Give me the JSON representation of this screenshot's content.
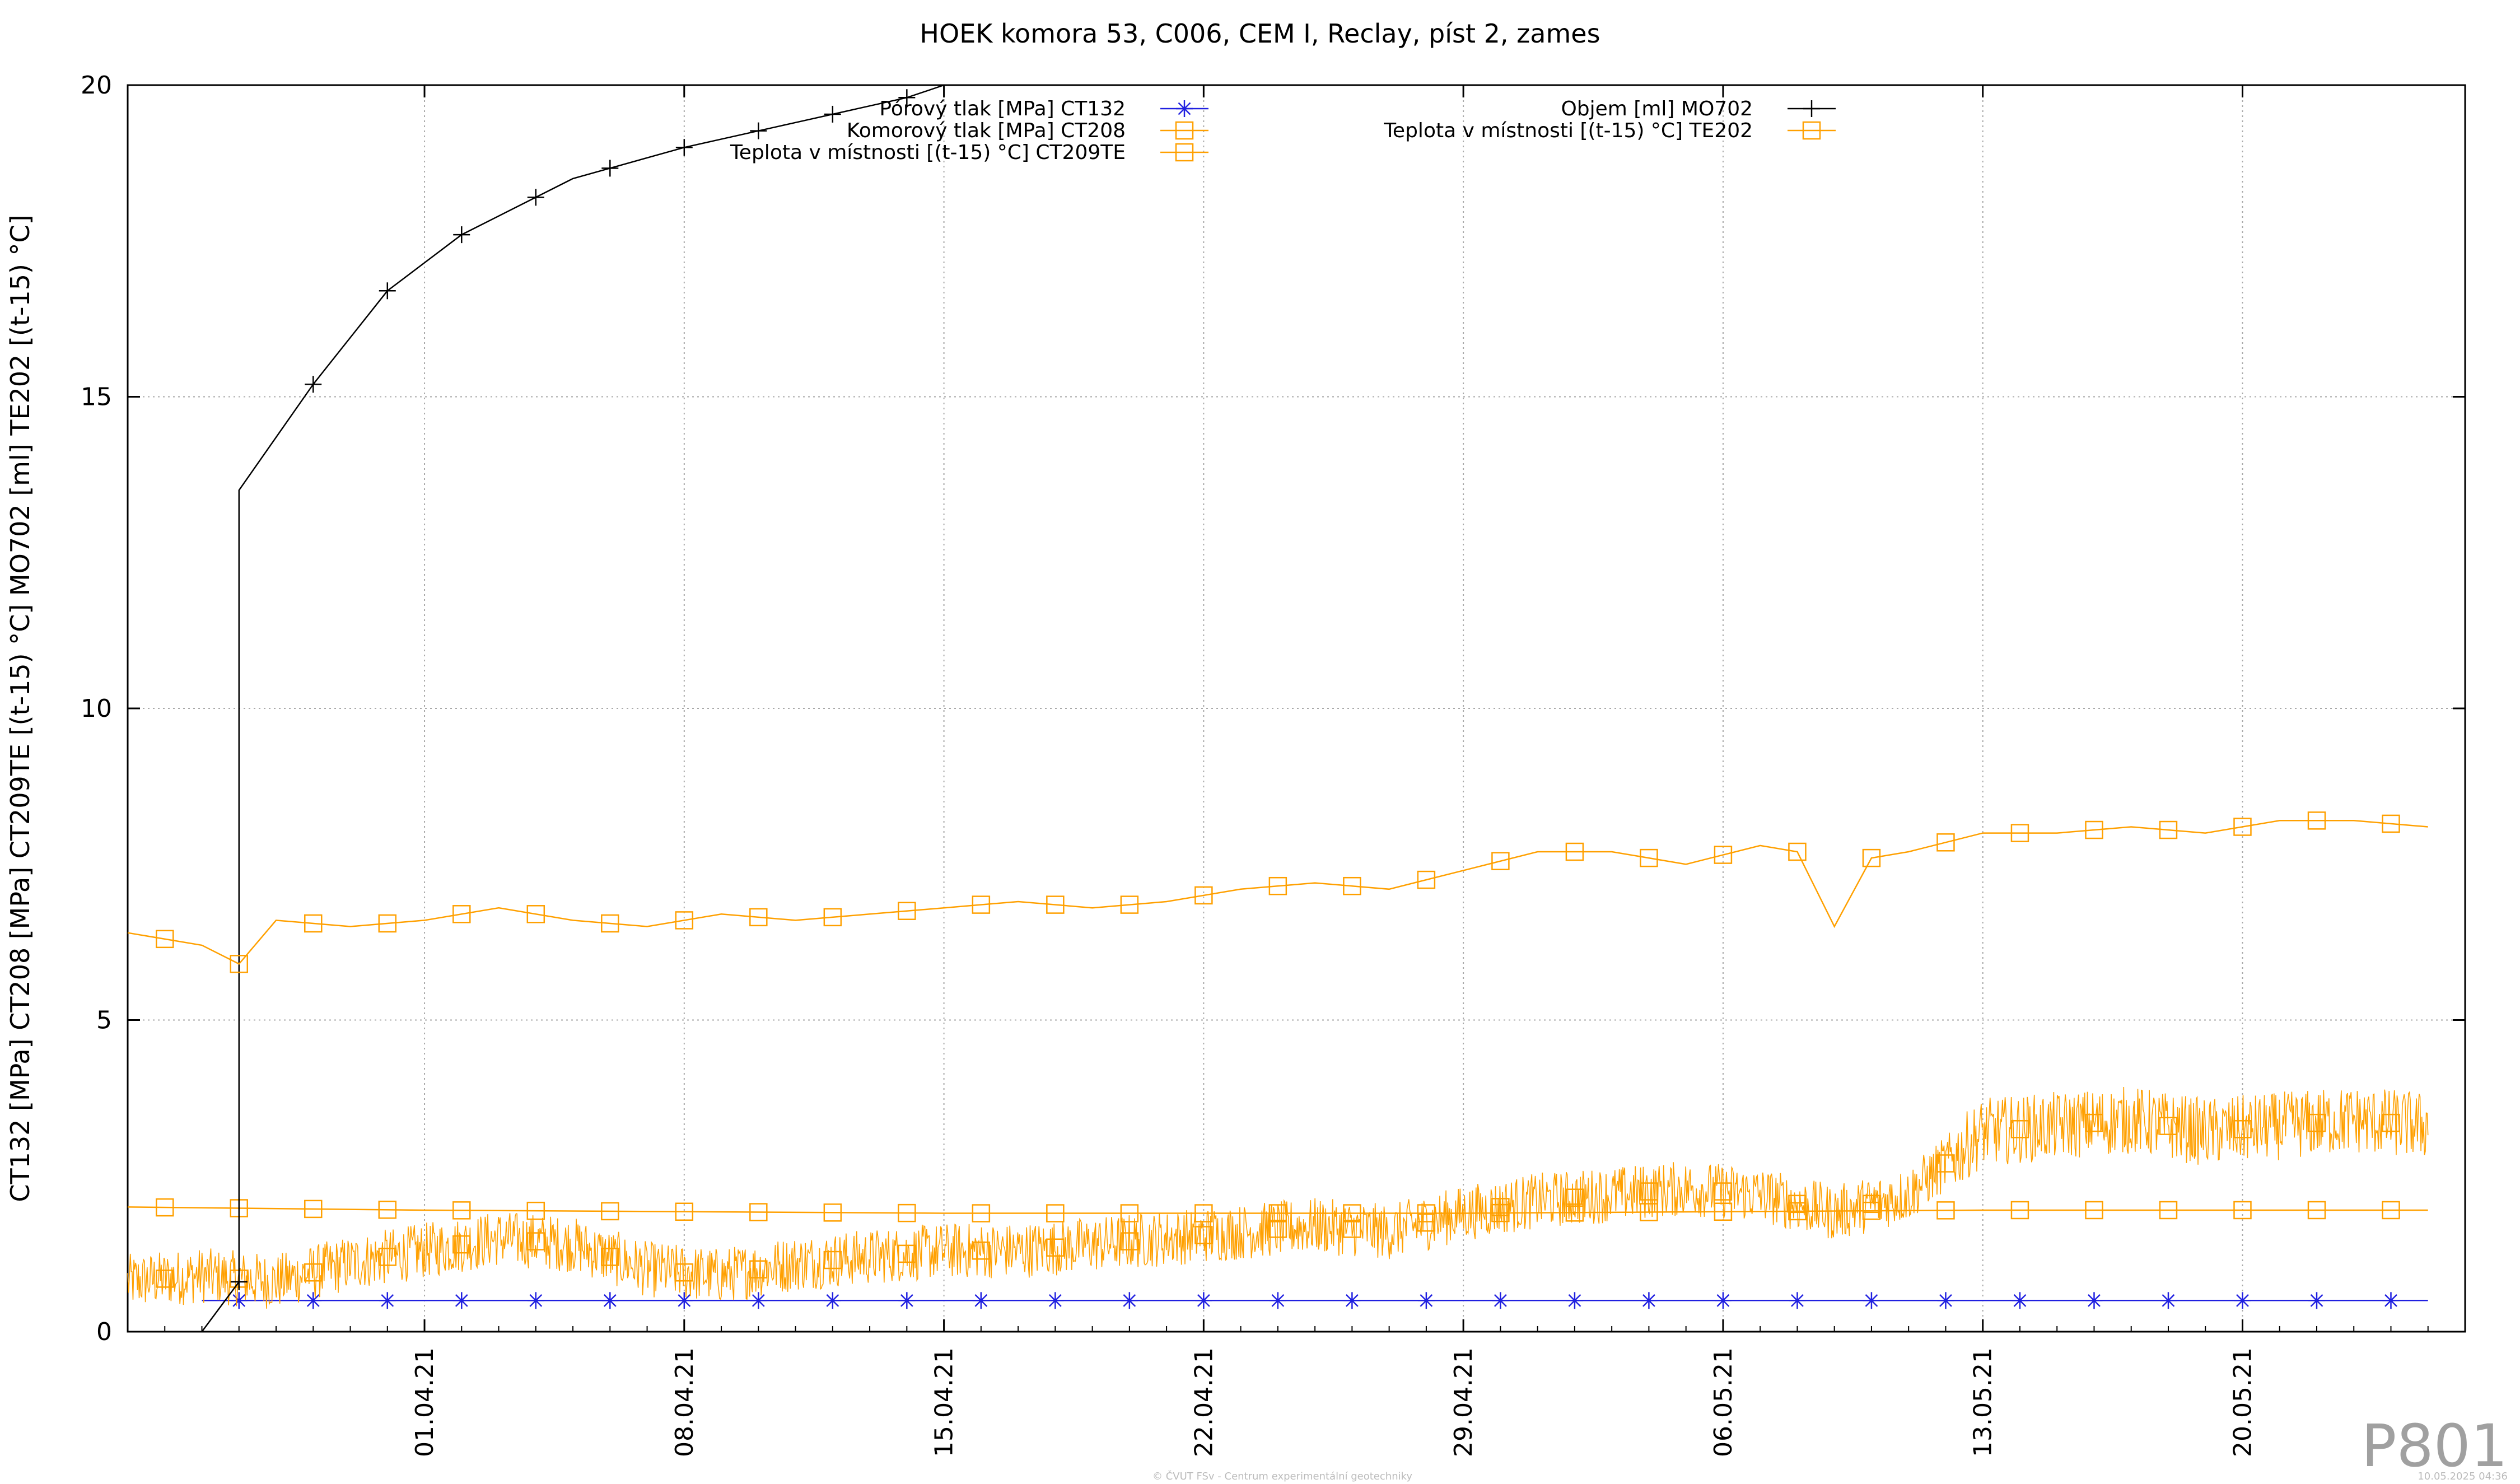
{
  "chart_data": {
    "type": "line",
    "title": "HOEK komora 53, C006, CEM I, Reclay, píst 2, zames",
    "ylabel": "CT132 [MPa] CT208 [MPa] CT209TE [(t-15) °C] MO702 [ml] TE202 [(t-15) °C]",
    "xlabel": "",
    "x_axis_type": "date",
    "xlim": [
      "2021-03-24",
      "2021-05-26"
    ],
    "ylim": [
      0,
      20
    ],
    "yticks": [
      "0",
      "5",
      "10",
      "15",
      "20"
    ],
    "xticks": [
      {
        "date": "2021-04-01",
        "label": "01.04.21"
      },
      {
        "date": "2021-04-08",
        "label": "08.04.21"
      },
      {
        "date": "2021-04-15",
        "label": "15.04.21"
      },
      {
        "date": "2021-04-22",
        "label": "22.04.21"
      },
      {
        "date": "2021-04-29",
        "label": "29.04.21"
      },
      {
        "date": "2021-05-06",
        "label": "06.05.21"
      },
      {
        "date": "2021-05-13",
        "label": "13.05.21"
      },
      {
        "date": "2021-05-20",
        "label": "20.05.21"
      }
    ],
    "grid": true,
    "legend_position": "top",
    "series": [
      {
        "name": "Pórový tlak [MPa] CT132",
        "color": "#2020e0",
        "marker": "star",
        "x": [
          "2021-03-26",
          "2021-05-25"
        ],
        "y": [
          0.5,
          0.5
        ]
      },
      {
        "name": "Komorový tlak [MPa] CT208",
        "color": "#ffa000",
        "marker": "square",
        "noisy": true,
        "x": [
          "2021-03-24",
          "2021-03-26",
          "2021-03-28",
          "2021-03-30",
          "2021-04-01",
          "2021-04-03",
          "2021-04-05",
          "2021-04-07",
          "2021-04-09",
          "2021-04-11",
          "2021-04-13",
          "2021-04-15",
          "2021-04-17",
          "2021-04-19",
          "2021-04-21",
          "2021-04-23",
          "2021-04-25",
          "2021-04-27",
          "2021-04-29",
          "2021-05-01",
          "2021-05-03",
          "2021-05-05",
          "2021-05-07",
          "2021-05-09",
          "2021-05-11",
          "2021-05-13",
          "2021-05-15",
          "2021-05-17",
          "2021-05-19",
          "2021-05-21",
          "2021-05-23",
          "2021-05-25"
        ],
        "y": [
          0.8,
          0.9,
          0.8,
          1.1,
          1.3,
          1.5,
          1.4,
          1.0,
          0.9,
          1.1,
          1.2,
          1.3,
          1.3,
          1.4,
          1.5,
          1.6,
          1.7,
          1.6,
          1.9,
          2.1,
          2.2,
          2.3,
          2.2,
          1.9,
          2.2,
          3.2,
          3.3,
          3.4,
          3.2,
          3.3,
          3.4,
          3.3
        ]
      },
      {
        "name": "Teplota v místnosti [(t-15) °C] CT209TE",
        "color": "#ffa000",
        "marker": "square",
        "x": [
          "2021-03-24",
          "2021-04-01",
          "2021-04-15",
          "2021-04-29",
          "2021-05-13",
          "2021-05-25"
        ],
        "y": [
          2.0,
          1.95,
          1.9,
          1.9,
          1.95,
          1.95
        ]
      },
      {
        "name": "Objem [ml] MO702",
        "color": "#000000",
        "marker": "plus",
        "x": [
          "2021-03-26",
          "2021-03-27",
          "2021-03-27",
          "2021-03-27",
          "2021-03-29",
          "2021-03-31",
          "2021-04-02",
          "2021-04-05",
          "2021-04-08",
          "2021-04-11",
          "2021-04-14",
          "2021-04-15"
        ],
        "y": [
          0,
          0.8,
          1.8,
          13.5,
          15.2,
          16.7,
          17.6,
          18.5,
          19.0,
          19.4,
          19.8,
          20.0
        ]
      },
      {
        "name": "Teplota v místnosti [(t-15) °C] TE202",
        "color": "#ffa000",
        "marker": "square",
        "x": [
          "2021-03-24",
          "2021-03-26",
          "2021-03-27",
          "2021-03-28",
          "2021-03-30",
          "2021-04-01",
          "2021-04-03",
          "2021-04-05",
          "2021-04-07",
          "2021-04-09",
          "2021-04-11",
          "2021-04-13",
          "2021-04-15",
          "2021-04-17",
          "2021-04-19",
          "2021-04-21",
          "2021-04-23",
          "2021-04-25",
          "2021-04-27",
          "2021-04-29",
          "2021-05-01",
          "2021-05-03",
          "2021-05-05",
          "2021-05-07",
          "2021-05-08",
          "2021-05-09",
          "2021-05-10",
          "2021-05-11",
          "2021-05-13",
          "2021-05-15",
          "2021-05-17",
          "2021-05-19",
          "2021-05-21",
          "2021-05-23",
          "2021-05-25"
        ],
        "y": [
          6.4,
          6.2,
          5.9,
          6.6,
          6.5,
          6.6,
          6.8,
          6.6,
          6.5,
          6.7,
          6.6,
          6.7,
          6.8,
          6.9,
          6.8,
          6.9,
          7.1,
          7.2,
          7.1,
          7.4,
          7.7,
          7.7,
          7.5,
          7.8,
          7.7,
          6.5,
          7.6,
          7.7,
          8.0,
          8.0,
          8.1,
          8.0,
          8.2,
          8.2,
          8.1
        ]
      }
    ]
  },
  "watermark": "P801",
  "footer": {
    "credit": "© ČVUT FSv - Centrum experimentální geotechniky",
    "timestamp": "10.05.2025 04:36"
  }
}
